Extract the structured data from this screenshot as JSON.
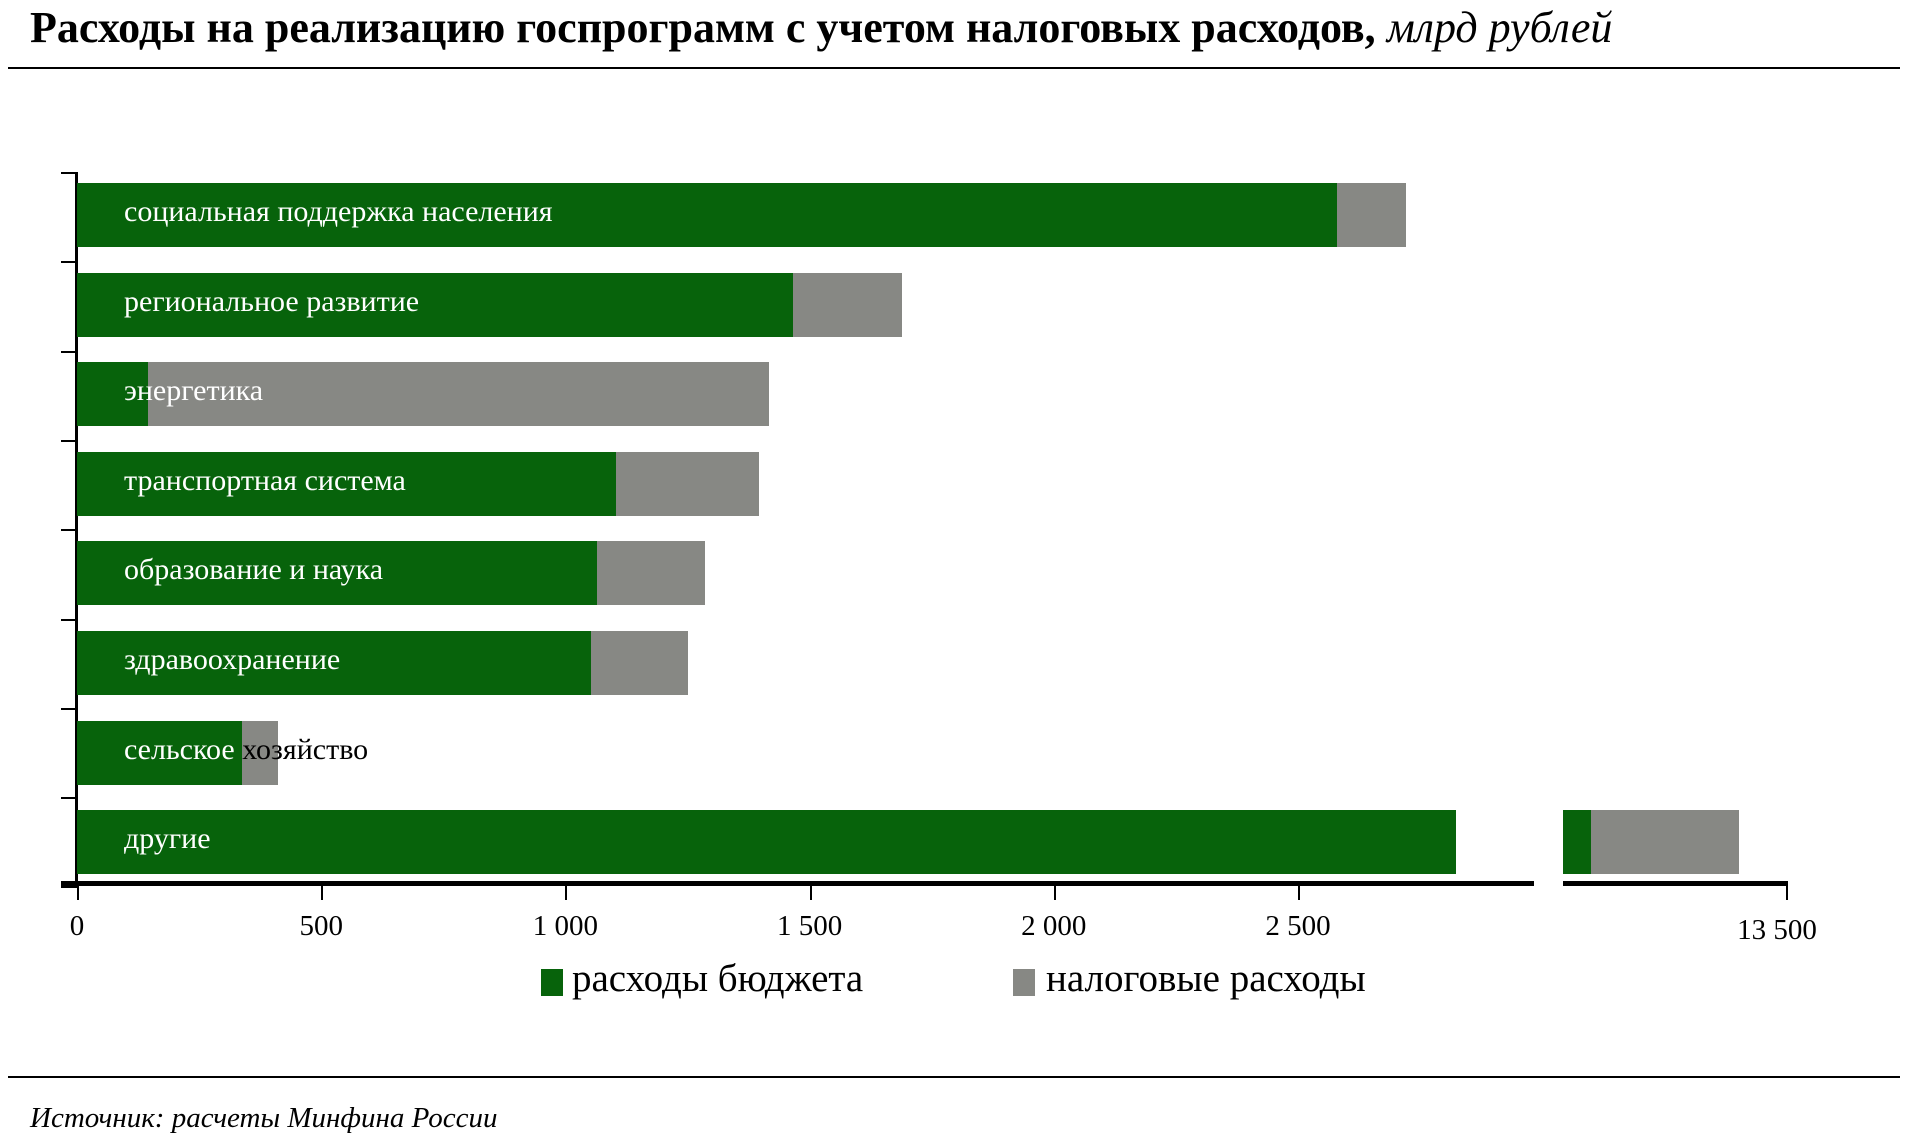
{
  "title": {
    "main": "Расходы на реализацию госпрограмм с учетом налоговых расходов,",
    "unit": "млрд рублей"
  },
  "source": "Источник: расчеты Минфина России",
  "colors": {
    "budget": "#07630b",
    "tax": "#878884"
  },
  "chart_data": {
    "type": "bar",
    "orientation": "horizontal",
    "stacked": true,
    "title": "Расходы на реализацию госпрограмм с учетом налоговых расходов, млрд рублей",
    "categories": [
      "социальная поддержка населения",
      "региональное развитие",
      "энергетика",
      "транспортная система",
      "образование и наука",
      "здравоохранение",
      "сельское хозяйство",
      "другие"
    ],
    "series": [
      {
        "name": "расходы бюджета",
        "values": [
          2580,
          1466,
          145,
          1104,
          1064,
          1052,
          337,
          13250
        ]
      },
      {
        "name": "налоговые расходы",
        "values": [
          142,
          224,
          1271,
          292,
          222,
          199,
          74,
          300
        ]
      }
    ],
    "xticks": [
      "0",
      "500",
      "1 000",
      "1 500",
      "2 000",
      "2 500",
      "13 500"
    ],
    "xlim": [
      0,
      13500
    ],
    "axis_break": true,
    "legend_position": "bottom"
  },
  "legend": {
    "budget": "расходы бюджета",
    "tax": "налоговые расходы"
  }
}
